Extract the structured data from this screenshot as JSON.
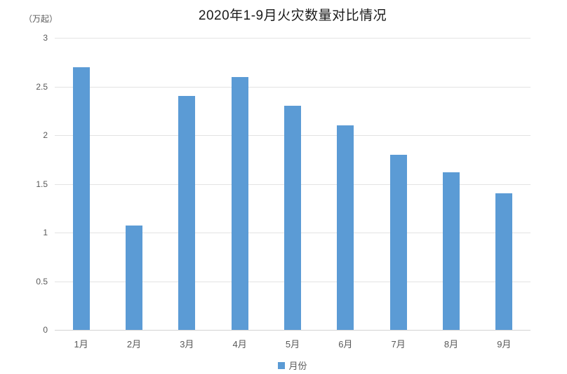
{
  "title": "2020年1-9月火灾数量对比情况",
  "y_unit_label": "（万起）",
  "legend": {
    "label": "月份",
    "marker_color": "#5b9bd5"
  },
  "colors": {
    "bar": "#5b9bd5",
    "gridline": "#e3e3e3",
    "axis_line": "#d4d4d4",
    "tick_text": "#595959",
    "title_text": "#1a1a1a",
    "background": "#ffffff"
  },
  "chart_data": {
    "type": "bar",
    "title": "2020年1-9月火灾数量对比情况",
    "categories": [
      "1月",
      "2月",
      "3月",
      "4月",
      "5月",
      "6月",
      "7月",
      "8月",
      "9月"
    ],
    "series": [
      {
        "name": "月份",
        "values": [
          2.7,
          1.07,
          2.4,
          2.6,
          2.3,
          2.1,
          1.8,
          1.62,
          1.4
        ]
      }
    ],
    "xlabel": "",
    "ylabel": "（万起）",
    "ylim": [
      0,
      3
    ],
    "y_ticks": [
      3,
      2.5,
      2,
      1.5,
      1,
      0.5,
      0
    ],
    "grid": true,
    "legend_position": "bottom",
    "bar_color": "#5b9bd5"
  }
}
